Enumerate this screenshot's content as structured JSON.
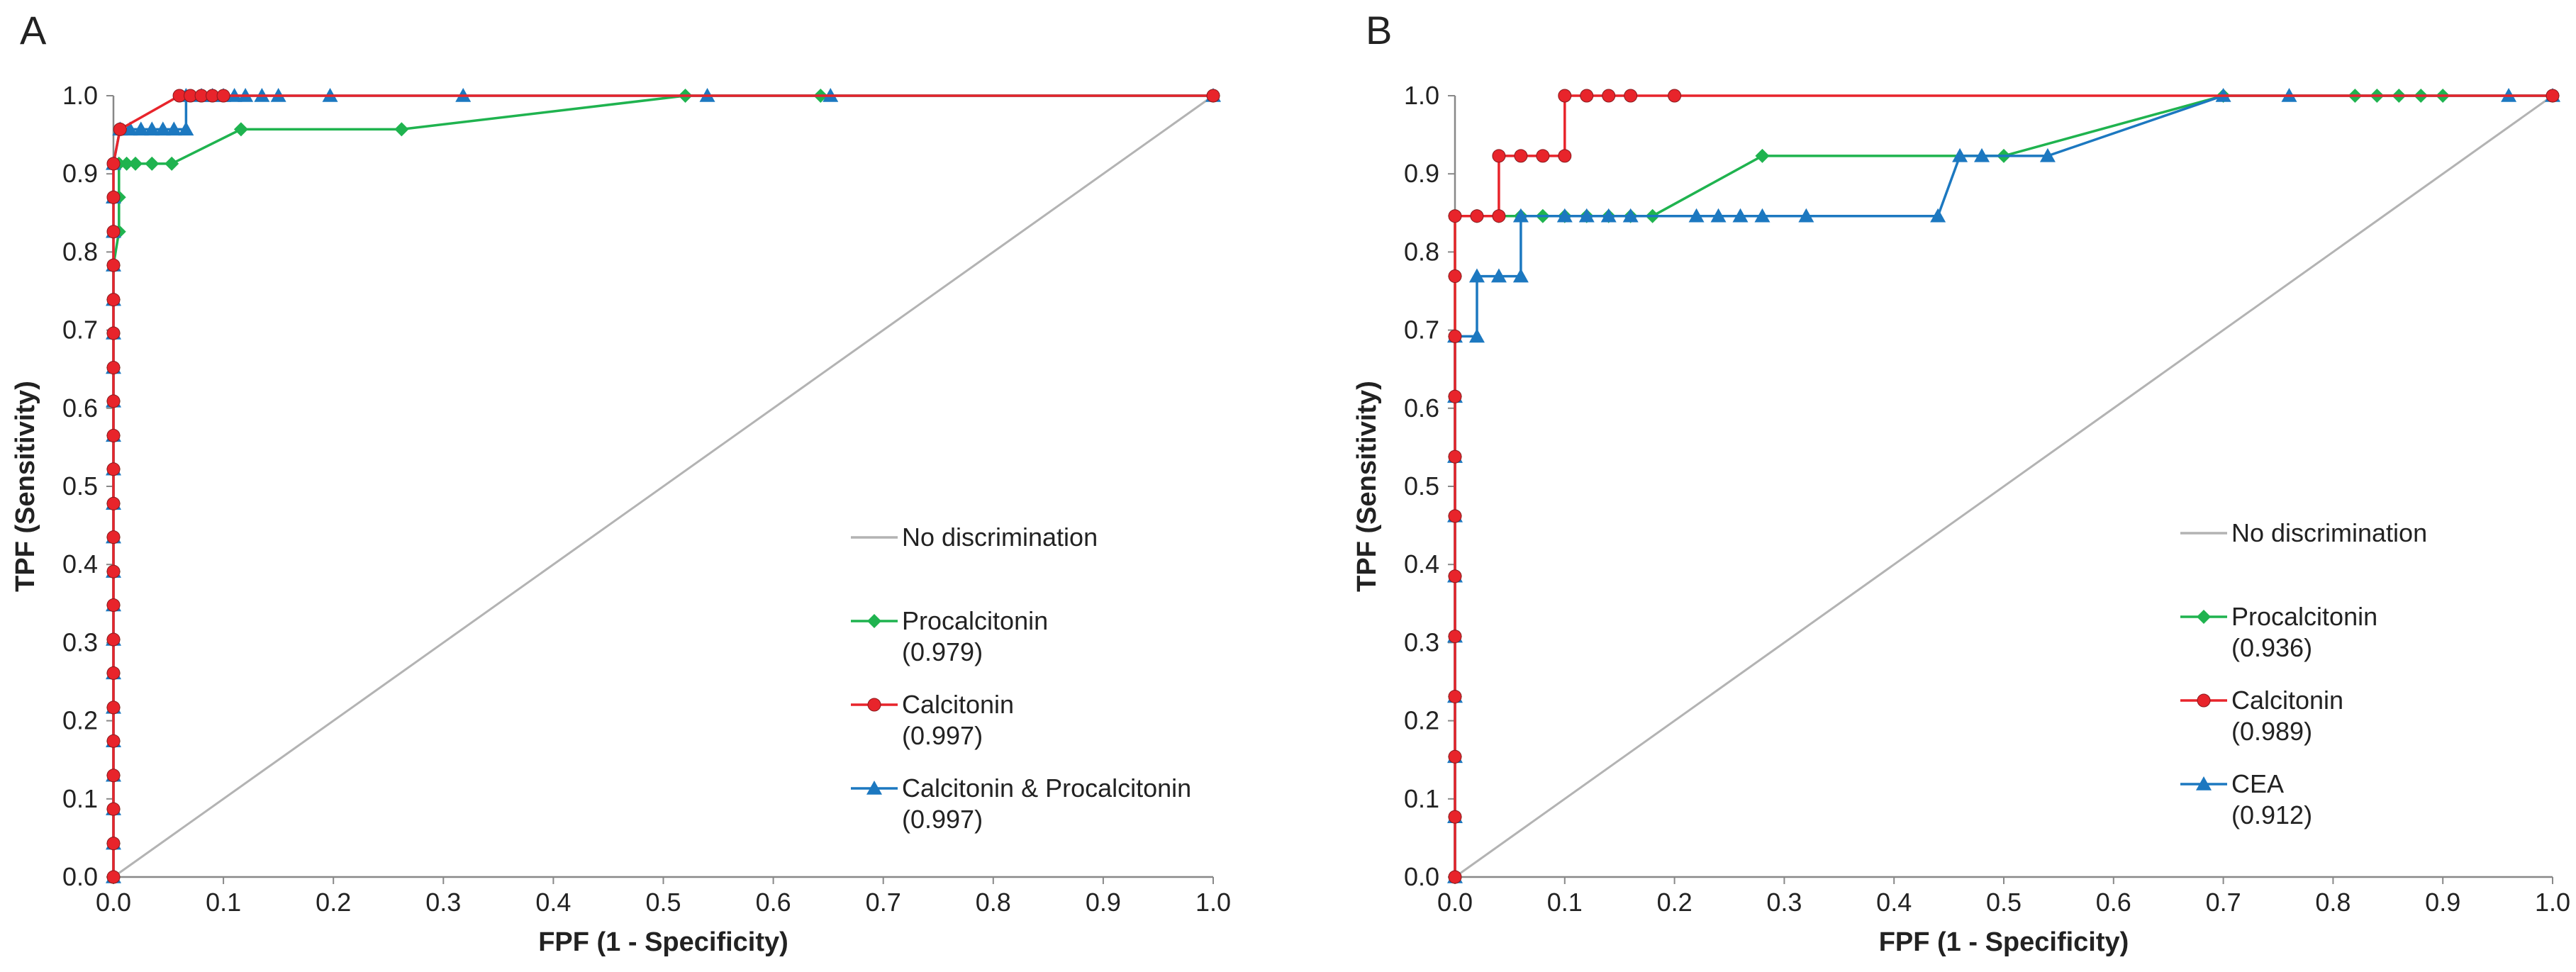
{
  "chart_data": [
    {
      "type": "line",
      "panel_label": "A",
      "xlabel": "FPF (1 - Specificity)",
      "ylabel": "TPF (Sensitivity)",
      "xlim": [
        0,
        1
      ],
      "ylim": [
        0,
        1
      ],
      "x_ticks": [
        "0.0",
        "0.1",
        "0.2",
        "0.3",
        "0.4",
        "0.5",
        "0.6",
        "0.7",
        "0.8",
        "0.9",
        "1.0"
      ],
      "y_ticks": [
        "0.0",
        "0.1",
        "0.2",
        "0.3",
        "0.4",
        "0.5",
        "0.6",
        "0.7",
        "0.8",
        "0.9",
        "1.0"
      ],
      "grid": false,
      "legend_position": "right",
      "reference_line": {
        "name": "No discrimination",
        "color": "#b3b3b3",
        "points": [
          [
            0,
            0
          ],
          [
            1,
            1
          ]
        ]
      },
      "series": [
        {
          "name": "Procalcitonin",
          "auc": "(0.979)",
          "color": "#1fb34f",
          "marker": "diamond",
          "points": [
            [
              0,
              0
            ],
            [
              0,
              0.043
            ],
            [
              0,
              0.087
            ],
            [
              0,
              0.13
            ],
            [
              0,
              0.174
            ],
            [
              0,
              0.217
            ],
            [
              0,
              0.261
            ],
            [
              0,
              0.304
            ],
            [
              0,
              0.348
            ],
            [
              0,
              0.391
            ],
            [
              0,
              0.435
            ],
            [
              0,
              0.478
            ],
            [
              0,
              0.522
            ],
            [
              0,
              0.565
            ],
            [
              0,
              0.609
            ],
            [
              0,
              0.652
            ],
            [
              0,
              0.696
            ],
            [
              0,
              0.739
            ],
            [
              0,
              0.783
            ],
            [
              0.005,
              0.826
            ],
            [
              0.005,
              0.87
            ],
            [
              0.005,
              0.913
            ],
            [
              0.012,
              0.913
            ],
            [
              0.02,
              0.913
            ],
            [
              0.035,
              0.913
            ],
            [
              0.053,
              0.913
            ],
            [
              0.116,
              0.957
            ],
            [
              0.262,
              0.957
            ],
            [
              0.52,
              1.0
            ],
            [
              0.643,
              1.0
            ],
            [
              1.0,
              1.0
            ]
          ]
        },
        {
          "name": "Calcitonin",
          "auc": "(0.997)",
          "color": "#e8242b",
          "marker": "circle",
          "points": [
            [
              0,
              0
            ],
            [
              0,
              0.043
            ],
            [
              0,
              0.087
            ],
            [
              0,
              0.13
            ],
            [
              0,
              0.174
            ],
            [
              0,
              0.217
            ],
            [
              0,
              0.261
            ],
            [
              0,
              0.304
            ],
            [
              0,
              0.348
            ],
            [
              0,
              0.391
            ],
            [
              0,
              0.435
            ],
            [
              0,
              0.478
            ],
            [
              0,
              0.522
            ],
            [
              0,
              0.565
            ],
            [
              0,
              0.609
            ],
            [
              0,
              0.652
            ],
            [
              0,
              0.696
            ],
            [
              0,
              0.739
            ],
            [
              0,
              0.783
            ],
            [
              0,
              0.826
            ],
            [
              0,
              0.87
            ],
            [
              0,
              0.913
            ],
            [
              0.006,
              0.957
            ],
            [
              0.06,
              1.0
            ],
            [
              0.07,
              1.0
            ],
            [
              0.08,
              1.0
            ],
            [
              0.09,
              1.0
            ],
            [
              0.1,
              1.0
            ],
            [
              1.0,
              1.0
            ]
          ]
        },
        {
          "name": "Calcitonin & Procalcitonin",
          "auc": "(0.997)",
          "color": "#1c78c0",
          "marker": "triangle",
          "points": [
            [
              0,
              0
            ],
            [
              0,
              0.043
            ],
            [
              0,
              0.087
            ],
            [
              0,
              0.13
            ],
            [
              0,
              0.174
            ],
            [
              0,
              0.217
            ],
            [
              0,
              0.261
            ],
            [
              0,
              0.304
            ],
            [
              0,
              0.348
            ],
            [
              0,
              0.391
            ],
            [
              0,
              0.435
            ],
            [
              0,
              0.478
            ],
            [
              0,
              0.522
            ],
            [
              0,
              0.565
            ],
            [
              0,
              0.609
            ],
            [
              0,
              0.652
            ],
            [
              0,
              0.696
            ],
            [
              0,
              0.739
            ],
            [
              0,
              0.783
            ],
            [
              0,
              0.826
            ],
            [
              0,
              0.87
            ],
            [
              0,
              0.913
            ],
            [
              0.006,
              0.957
            ],
            [
              0.015,
              0.957
            ],
            [
              0.025,
              0.957
            ],
            [
              0.035,
              0.957
            ],
            [
              0.045,
              0.957
            ],
            [
              0.055,
              0.957
            ],
            [
              0.066,
              0.957
            ],
            [
              0.066,
              1.0
            ],
            [
              0.08,
              1.0
            ],
            [
              0.09,
              1.0
            ],
            [
              0.1,
              1.0
            ],
            [
              0.11,
              1.0
            ],
            [
              0.12,
              1.0
            ],
            [
              0.135,
              1.0
            ],
            [
              0.15,
              1.0
            ],
            [
              0.197,
              1.0
            ],
            [
              0.318,
              1.0
            ],
            [
              0.54,
              1.0
            ],
            [
              0.652,
              1.0
            ],
            [
              1.0,
              1.0
            ]
          ]
        }
      ]
    },
    {
      "type": "line",
      "panel_label": "B",
      "xlabel": "FPF (1 - Specificity)",
      "ylabel": "TPF (Sensitivity)",
      "xlim": [
        0,
        1
      ],
      "ylim": [
        0,
        1
      ],
      "x_ticks": [
        "0.0",
        "0.1",
        "0.2",
        "0.3",
        "0.4",
        "0.5",
        "0.6",
        "0.7",
        "0.8",
        "0.9",
        "1.0"
      ],
      "y_ticks": [
        "0.0",
        "0.1",
        "0.2",
        "0.3",
        "0.4",
        "0.5",
        "0.6",
        "0.7",
        "0.8",
        "0.9",
        "1.0"
      ],
      "grid": false,
      "legend_position": "right",
      "reference_line": {
        "name": "No discrimination",
        "color": "#b3b3b3",
        "points": [
          [
            0,
            0
          ],
          [
            1,
            1
          ]
        ]
      },
      "series": [
        {
          "name": "Procalcitonin",
          "auc": "(0.936)",
          "color": "#1fb34f",
          "marker": "diamond",
          "points": [
            [
              0,
              0
            ],
            [
              0,
              0.077
            ],
            [
              0,
              0.154
            ],
            [
              0,
              0.231
            ],
            [
              0,
              0.308
            ],
            [
              0,
              0.385
            ],
            [
              0,
              0.462
            ],
            [
              0,
              0.538
            ],
            [
              0,
              0.615
            ],
            [
              0,
              0.692
            ],
            [
              0,
              0.769
            ],
            [
              0,
              0.846
            ],
            [
              0.02,
              0.846
            ],
            [
              0.04,
              0.846
            ],
            [
              0.06,
              0.846
            ],
            [
              0.08,
              0.846
            ],
            [
              0.1,
              0.846
            ],
            [
              0.12,
              0.846
            ],
            [
              0.14,
              0.846
            ],
            [
              0.16,
              0.846
            ],
            [
              0.18,
              0.846
            ],
            [
              0.28,
              0.923
            ],
            [
              0.5,
              0.923
            ],
            [
              0.7,
              1.0
            ],
            [
              0.82,
              1.0
            ],
            [
              0.84,
              1.0
            ],
            [
              0.86,
              1.0
            ],
            [
              0.88,
              1.0
            ],
            [
              0.9,
              1.0
            ],
            [
              1.0,
              1.0
            ]
          ]
        },
        {
          "name": "Calcitonin",
          "auc": "(0.989)",
          "color": "#e8242b",
          "marker": "circle",
          "points": [
            [
              0,
              0
            ],
            [
              0,
              0.077
            ],
            [
              0,
              0.154
            ],
            [
              0,
              0.231
            ],
            [
              0,
              0.308
            ],
            [
              0,
              0.385
            ],
            [
              0,
              0.462
            ],
            [
              0,
              0.538
            ],
            [
              0,
              0.615
            ],
            [
              0,
              0.692
            ],
            [
              0,
              0.769
            ],
            [
              0,
              0.846
            ],
            [
              0.02,
              0.846
            ],
            [
              0.04,
              0.846
            ],
            [
              0.04,
              0.923
            ],
            [
              0.06,
              0.923
            ],
            [
              0.08,
              0.923
            ],
            [
              0.1,
              0.923
            ],
            [
              0.1,
              1.0
            ],
            [
              0.12,
              1.0
            ],
            [
              0.14,
              1.0
            ],
            [
              0.16,
              1.0
            ],
            [
              0.2,
              1.0
            ],
            [
              1.0,
              1.0
            ]
          ]
        },
        {
          "name": "CEA",
          "auc": "(0.912)",
          "color": "#1c78c0",
          "marker": "triangle",
          "points": [
            [
              0,
              0
            ],
            [
              0,
              0.077
            ],
            [
              0,
              0.154
            ],
            [
              0,
              0.231
            ],
            [
              0,
              0.308
            ],
            [
              0,
              0.385
            ],
            [
              0,
              0.462
            ],
            [
              0,
              0.538
            ],
            [
              0,
              0.615
            ],
            [
              0,
              0.692
            ],
            [
              0.02,
              0.692
            ],
            [
              0.02,
              0.769
            ],
            [
              0.04,
              0.769
            ],
            [
              0.06,
              0.769
            ],
            [
              0.06,
              0.846
            ],
            [
              0.1,
              0.846
            ],
            [
              0.12,
              0.846
            ],
            [
              0.14,
              0.846
            ],
            [
              0.16,
              0.846
            ],
            [
              0.22,
              0.846
            ],
            [
              0.24,
              0.846
            ],
            [
              0.26,
              0.846
            ],
            [
              0.28,
              0.846
            ],
            [
              0.32,
              0.846
            ],
            [
              0.44,
              0.846
            ],
            [
              0.46,
              0.923
            ],
            [
              0.48,
              0.923
            ],
            [
              0.54,
              0.923
            ],
            [
              0.7,
              1.0
            ],
            [
              0.76,
              1.0
            ],
            [
              0.96,
              1.0
            ],
            [
              1.0,
              1.0
            ]
          ]
        }
      ]
    }
  ]
}
